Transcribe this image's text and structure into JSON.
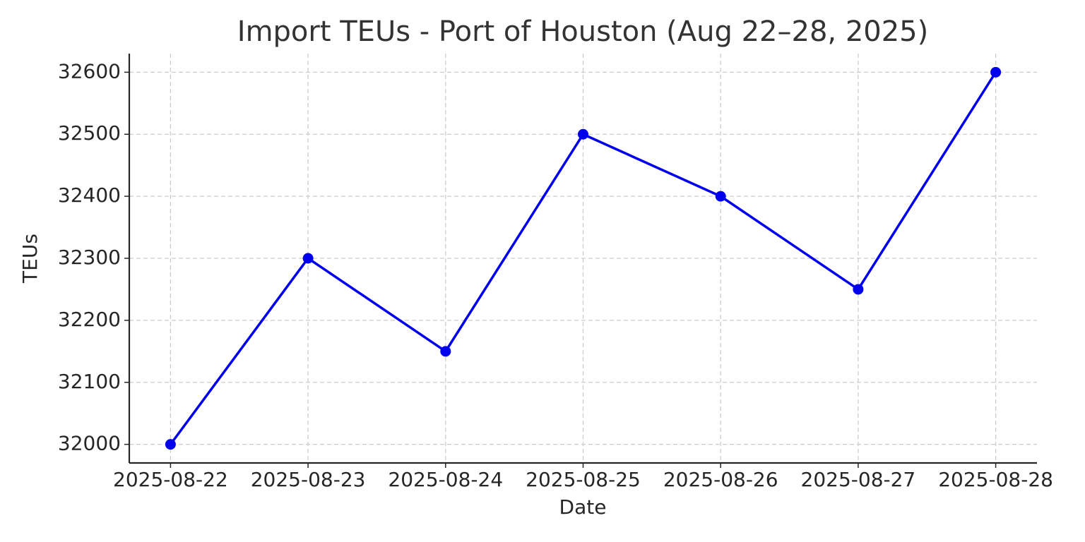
{
  "chart_data": {
    "type": "line",
    "title": "Import TEUs - Port of Houston (Aug 22–28, 2025)",
    "x_label": "Date",
    "y_label": "TEUs",
    "categories": [
      "2025-08-22",
      "2025-08-23",
      "2025-08-24",
      "2025-08-25",
      "2025-08-26",
      "2025-08-27",
      "2025-08-28"
    ],
    "series": [
      {
        "name": "TEUs",
        "color": "#0000ee",
        "values": [
          32000,
          32300,
          32150,
          32500,
          32400,
          32250,
          32600
        ]
      }
    ],
    "ylim": [
      31970,
      32630
    ],
    "yticks": [
      32000,
      32100,
      32200,
      32300,
      32400,
      32500,
      32600
    ],
    "grid": true,
    "legend": false
  }
}
